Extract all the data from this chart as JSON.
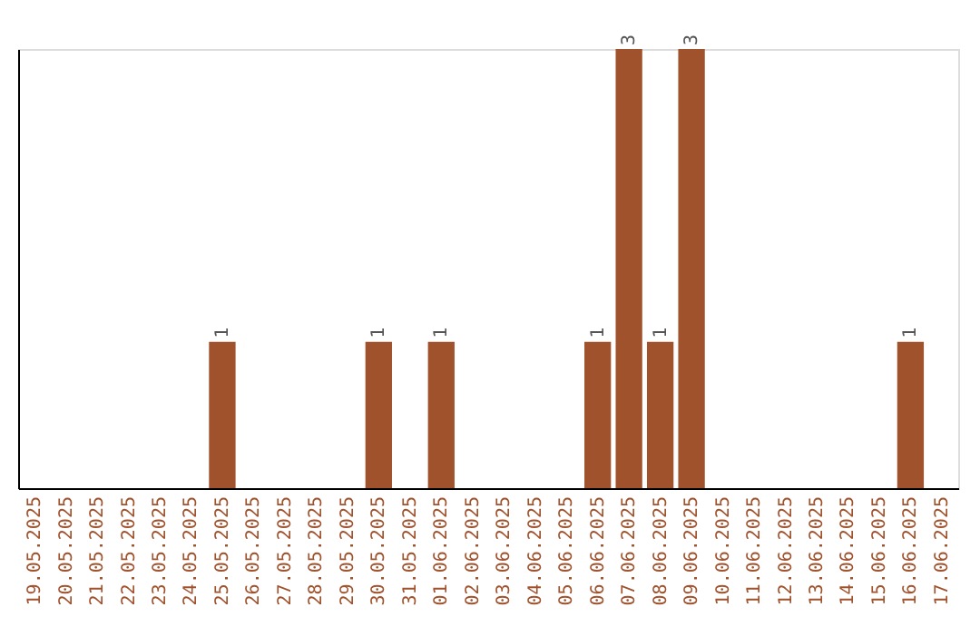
{
  "chart_data": {
    "type": "bar",
    "categories": [
      "19.05.2025",
      "20.05.2025",
      "21.05.2025",
      "22.05.2025",
      "23.05.2025",
      "24.05.2025",
      "25.05.2025",
      "26.05.2025",
      "27.05.2025",
      "28.05.2025",
      "29.05.2025",
      "30.05.2025",
      "31.05.2025",
      "01.06.2025",
      "02.06.2025",
      "03.06.2025",
      "04.06.2025",
      "05.06.2025",
      "06.06.2025",
      "07.06.2025",
      "08.06.2025",
      "09.06.2025",
      "10.06.2025",
      "11.06.2025",
      "12.06.2025",
      "13.06.2025",
      "14.06.2025",
      "15.06.2025",
      "16.06.2025",
      "17.06.2025"
    ],
    "values": [
      0,
      0,
      0,
      0,
      0,
      0,
      1,
      0,
      0,
      0,
      0,
      1,
      0,
      1,
      0,
      0,
      0,
      0,
      1,
      3,
      1,
      3,
      0,
      0,
      0,
      0,
      0,
      0,
      1,
      0
    ],
    "value_labels": [
      null,
      null,
      null,
      null,
      null,
      null,
      "1",
      null,
      null,
      null,
      null,
      "1",
      null,
      "1",
      null,
      null,
      null,
      null,
      "1",
      "3",
      "1",
      "3",
      null,
      null,
      null,
      null,
      null,
      null,
      "1",
      null
    ],
    "color": "#a0522d",
    "ylim": [
      0,
      3
    ],
    "grid": false,
    "tick_labels": "x"
  }
}
